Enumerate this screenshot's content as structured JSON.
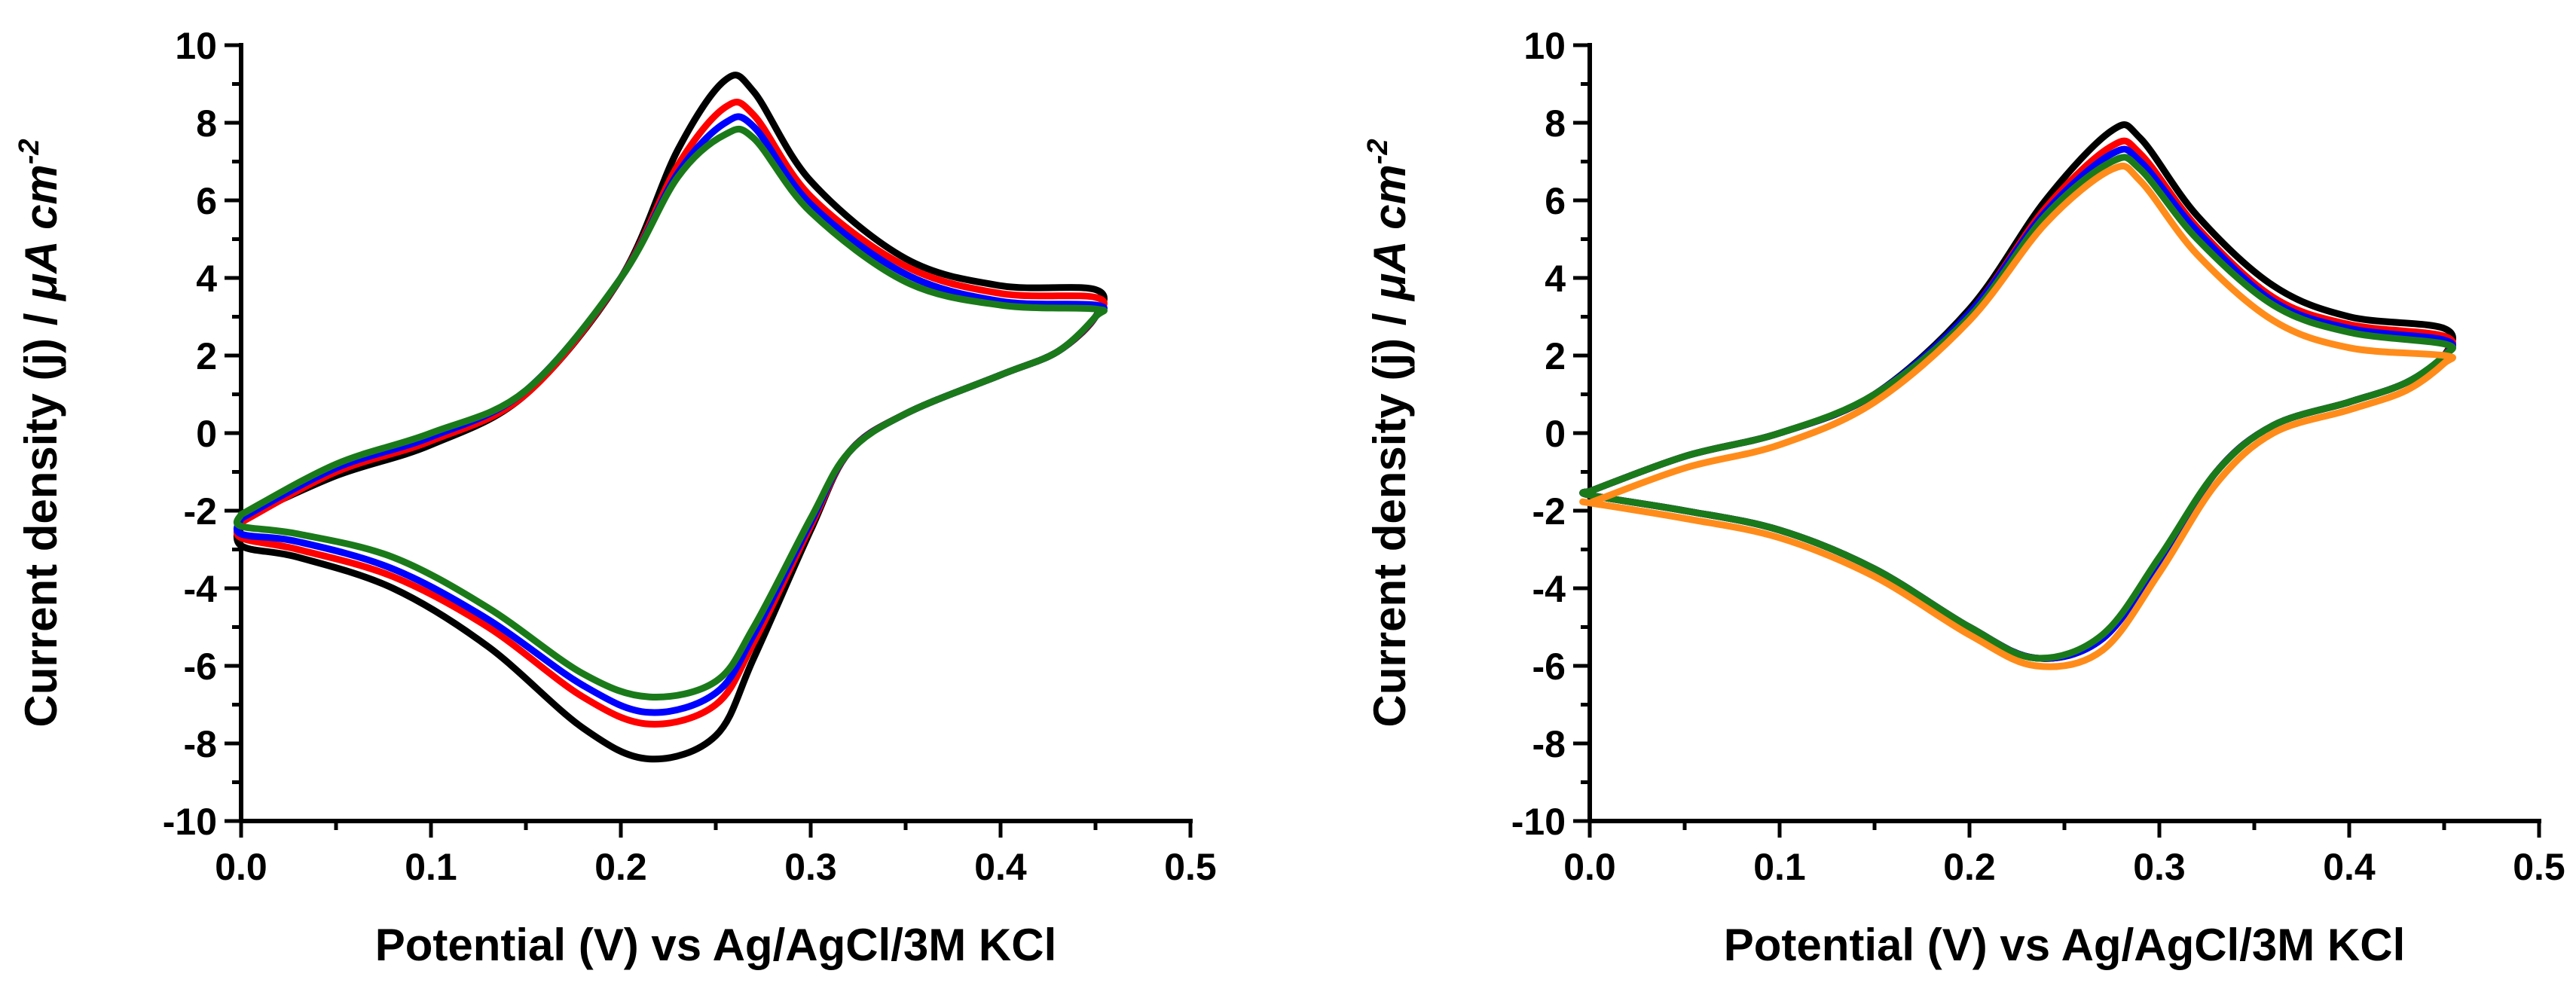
{
  "chart_data": [
    {
      "type": "line",
      "title": "",
      "xlabel": "Potential (V) vs Ag/AgCl/3M KCl",
      "ylabel_prefix": "Current density (j) / ",
      "ylabel_unit_mu": "μ",
      "ylabel_unit_main": "A cm",
      "ylabel_unit_sup": "-2",
      "xlim": [
        0.0,
        0.5
      ],
      "ylim": [
        -10,
        10
      ],
      "xticks": [
        "0.0",
        "0.1",
        "0.2",
        "0.3",
        "0.4",
        "0.5"
      ],
      "yticks": [
        "-10",
        "-8",
        "-6",
        "-4",
        "-2",
        "0",
        "2",
        "4",
        "6",
        "8",
        "10"
      ],
      "series": [
        {
          "name": "black",
          "color": "#000000",
          "anodic": [
            [
              0.0,
              -2.2
            ],
            [
              0.05,
              -1.1
            ],
            [
              0.1,
              -0.3
            ],
            [
              0.15,
              1.0
            ],
            [
              0.2,
              4.0
            ],
            [
              0.23,
              7.3
            ],
            [
              0.255,
              9.1
            ],
            [
              0.27,
              8.8
            ],
            [
              0.3,
              6.5
            ],
            [
              0.35,
              4.5
            ],
            [
              0.4,
              3.8
            ],
            [
              0.45,
              3.7
            ]
          ],
          "cathodic": [
            [
              0.45,
              3.0
            ],
            [
              0.43,
              2.1
            ],
            [
              0.4,
              1.5
            ],
            [
              0.35,
              0.5
            ],
            [
              0.32,
              -0.5
            ],
            [
              0.3,
              -2.5
            ],
            [
              0.27,
              -5.8
            ],
            [
              0.25,
              -7.8
            ],
            [
              0.215,
              -8.4
            ],
            [
              0.18,
              -7.6
            ],
            [
              0.13,
              -5.5
            ],
            [
              0.08,
              -4.0
            ],
            [
              0.03,
              -3.2
            ],
            [
              0.0,
              -2.9
            ]
          ]
        },
        {
          "name": "red",
          "color": "#ff0000",
          "anodic": [
            [
              0.0,
              -2.3
            ],
            [
              0.05,
              -1.0
            ],
            [
              0.1,
              -0.2
            ],
            [
              0.15,
              1.0
            ],
            [
              0.2,
              4.0
            ],
            [
              0.23,
              6.9
            ],
            [
              0.255,
              8.4
            ],
            [
              0.27,
              8.2
            ],
            [
              0.3,
              6.1
            ],
            [
              0.35,
              4.3
            ],
            [
              0.4,
              3.6
            ],
            [
              0.45,
              3.5
            ]
          ],
          "cathodic": [
            [
              0.45,
              3.0
            ],
            [
              0.43,
              2.1
            ],
            [
              0.4,
              1.5
            ],
            [
              0.35,
              0.5
            ],
            [
              0.32,
              -0.5
            ],
            [
              0.3,
              -2.4
            ],
            [
              0.27,
              -5.4
            ],
            [
              0.25,
              -7.0
            ],
            [
              0.215,
              -7.5
            ],
            [
              0.18,
              -6.8
            ],
            [
              0.13,
              -5.0
            ],
            [
              0.08,
              -3.7
            ],
            [
              0.03,
              -3.0
            ],
            [
              0.0,
              -2.7
            ]
          ]
        },
        {
          "name": "blue",
          "color": "#0000ff",
          "anodic": [
            [
              0.0,
              -2.2
            ],
            [
              0.05,
              -0.9
            ],
            [
              0.1,
              -0.1
            ],
            [
              0.15,
              1.1
            ],
            [
              0.2,
              4.0
            ],
            [
              0.23,
              6.7
            ],
            [
              0.255,
              8.0
            ],
            [
              0.27,
              7.9
            ],
            [
              0.3,
              5.9
            ],
            [
              0.35,
              4.1
            ],
            [
              0.4,
              3.4
            ],
            [
              0.45,
              3.3
            ]
          ],
          "cathodic": [
            [
              0.45,
              3.0
            ],
            [
              0.43,
              2.1
            ],
            [
              0.4,
              1.5
            ],
            [
              0.35,
              0.5
            ],
            [
              0.32,
              -0.5
            ],
            [
              0.3,
              -2.3
            ],
            [
              0.27,
              -5.2
            ],
            [
              0.25,
              -6.7
            ],
            [
              0.215,
              -7.2
            ],
            [
              0.18,
              -6.5
            ],
            [
              0.13,
              -4.8
            ],
            [
              0.08,
              -3.5
            ],
            [
              0.03,
              -2.8
            ],
            [
              0.0,
              -2.6
            ]
          ]
        },
        {
          "name": "green",
          "color": "#1a7a1a",
          "anodic": [
            [
              0.0,
              -2.1
            ],
            [
              0.05,
              -0.8
            ],
            [
              0.1,
              0.0
            ],
            [
              0.15,
              1.1
            ],
            [
              0.2,
              4.0
            ],
            [
              0.23,
              6.6
            ],
            [
              0.255,
              7.7
            ],
            [
              0.27,
              7.6
            ],
            [
              0.3,
              5.7
            ],
            [
              0.35,
              3.9
            ],
            [
              0.4,
              3.3
            ],
            [
              0.45,
              3.2
            ]
          ],
          "cathodic": [
            [
              0.45,
              3.0
            ],
            [
              0.43,
              2.1
            ],
            [
              0.4,
              1.5
            ],
            [
              0.35,
              0.5
            ],
            [
              0.32,
              -0.5
            ],
            [
              0.3,
              -2.2
            ],
            [
              0.27,
              -5.0
            ],
            [
              0.25,
              -6.4
            ],
            [
              0.215,
              -6.8
            ],
            [
              0.18,
              -6.2
            ],
            [
              0.13,
              -4.5
            ],
            [
              0.08,
              -3.2
            ],
            [
              0.03,
              -2.6
            ],
            [
              0.0,
              -2.4
            ]
          ]
        }
      ]
    },
    {
      "type": "line",
      "title": "",
      "xlabel": "Potential (V) vs Ag/AgCl/3M KCl",
      "ylabel_prefix": "Current density (j) / ",
      "ylabel_unit_mu": "μ",
      "ylabel_unit_main": "A cm",
      "ylabel_unit_sup": "-2",
      "xlim": [
        0.0,
        0.5
      ],
      "ylim": [
        -10,
        10
      ],
      "xticks": [
        "0.0",
        "0.1",
        "0.2",
        "0.3",
        "0.4",
        "0.5"
      ],
      "yticks": [
        "-10",
        "-8",
        "-6",
        "-4",
        "-2",
        "0",
        "2",
        "4",
        "6",
        "8",
        "10"
      ],
      "series": [
        {
          "name": "black",
          "color": "#000000",
          "anodic": [
            [
              0.0,
              -1.5
            ],
            [
              0.05,
              -0.6
            ],
            [
              0.1,
              0.0
            ],
            [
              0.15,
              1.0
            ],
            [
              0.2,
              3.2
            ],
            [
              0.24,
              6.0
            ],
            [
              0.275,
              7.8
            ],
            [
              0.29,
              7.6
            ],
            [
              0.32,
              5.6
            ],
            [
              0.36,
              3.8
            ],
            [
              0.4,
              3.0
            ],
            [
              0.45,
              2.7
            ]
          ],
          "cathodic": [
            [
              0.45,
              2.0
            ],
            [
              0.43,
              1.3
            ],
            [
              0.4,
              0.8
            ],
            [
              0.36,
              0.2
            ],
            [
              0.33,
              -1.0
            ],
            [
              0.3,
              -3.3
            ],
            [
              0.27,
              -5.3
            ],
            [
              0.235,
              -5.8
            ],
            [
              0.2,
              -5.0
            ],
            [
              0.15,
              -3.5
            ],
            [
              0.1,
              -2.5
            ],
            [
              0.05,
              -2.0
            ],
            [
              0.0,
              -1.6
            ]
          ]
        },
        {
          "name": "red",
          "color": "#ff0000",
          "anodic": [
            [
              0.0,
              -1.5
            ],
            [
              0.05,
              -0.6
            ],
            [
              0.1,
              0.0
            ],
            [
              0.15,
              1.0
            ],
            [
              0.2,
              3.1
            ],
            [
              0.24,
              5.8
            ],
            [
              0.275,
              7.4
            ],
            [
              0.29,
              7.2
            ],
            [
              0.32,
              5.3
            ],
            [
              0.36,
              3.5
            ],
            [
              0.4,
              2.8
            ],
            [
              0.45,
              2.5
            ]
          ],
          "cathodic": [
            [
              0.45,
              2.0
            ],
            [
              0.43,
              1.3
            ],
            [
              0.4,
              0.8
            ],
            [
              0.36,
              0.2
            ],
            [
              0.33,
              -1.0
            ],
            [
              0.3,
              -3.3
            ],
            [
              0.27,
              -5.3
            ],
            [
              0.235,
              -5.8
            ],
            [
              0.2,
              -5.0
            ],
            [
              0.15,
              -3.5
            ],
            [
              0.1,
              -2.5
            ],
            [
              0.05,
              -2.0
            ],
            [
              0.0,
              -1.6
            ]
          ]
        },
        {
          "name": "blue",
          "color": "#0000ff",
          "anodic": [
            [
              0.0,
              -1.5
            ],
            [
              0.05,
              -0.6
            ],
            [
              0.1,
              0.0
            ],
            [
              0.15,
              1.0
            ],
            [
              0.2,
              3.1
            ],
            [
              0.24,
              5.7
            ],
            [
              0.275,
              7.2
            ],
            [
              0.29,
              7.0
            ],
            [
              0.32,
              5.2
            ],
            [
              0.36,
              3.4
            ],
            [
              0.4,
              2.7
            ],
            [
              0.45,
              2.4
            ]
          ],
          "cathodic": [
            [
              0.45,
              2.0
            ],
            [
              0.43,
              1.3
            ],
            [
              0.4,
              0.8
            ],
            [
              0.36,
              0.2
            ],
            [
              0.33,
              -1.0
            ],
            [
              0.3,
              -3.3
            ],
            [
              0.27,
              -5.3
            ],
            [
              0.235,
              -5.8
            ],
            [
              0.2,
              -5.0
            ],
            [
              0.15,
              -3.5
            ],
            [
              0.1,
              -2.5
            ],
            [
              0.05,
              -2.0
            ],
            [
              0.0,
              -1.6
            ]
          ]
        },
        {
          "name": "green",
          "color": "#1a7a1a",
          "anodic": [
            [
              0.0,
              -1.5
            ],
            [
              0.05,
              -0.6
            ],
            [
              0.1,
              0.0
            ],
            [
              0.15,
              1.0
            ],
            [
              0.2,
              3.0
            ],
            [
              0.24,
              5.6
            ],
            [
              0.275,
              7.0
            ],
            [
              0.29,
              6.8
            ],
            [
              0.32,
              5.0
            ],
            [
              0.36,
              3.3
            ],
            [
              0.4,
              2.6
            ],
            [
              0.45,
              2.3
            ]
          ],
          "cathodic": [
            [
              0.45,
              2.0
            ],
            [
              0.43,
              1.3
            ],
            [
              0.4,
              0.8
            ],
            [
              0.36,
              0.2
            ],
            [
              0.33,
              -1.0
            ],
            [
              0.3,
              -3.2
            ],
            [
              0.27,
              -5.2
            ],
            [
              0.235,
              -5.8
            ],
            [
              0.2,
              -5.0
            ],
            [
              0.15,
              -3.5
            ],
            [
              0.1,
              -2.5
            ],
            [
              0.05,
              -2.0
            ],
            [
              0.0,
              -1.6
            ]
          ]
        },
        {
          "name": "orange",
          "color": "#ff8c1a",
          "anodic": [
            [
              0.0,
              -1.8
            ],
            [
              0.05,
              -0.9
            ],
            [
              0.1,
              -0.3
            ],
            [
              0.15,
              0.8
            ],
            [
              0.2,
              2.9
            ],
            [
              0.24,
              5.4
            ],
            [
              0.275,
              6.8
            ],
            [
              0.29,
              6.5
            ],
            [
              0.32,
              4.6
            ],
            [
              0.36,
              2.9
            ],
            [
              0.4,
              2.2
            ],
            [
              0.45,
              2.0
            ]
          ],
          "cathodic": [
            [
              0.45,
              1.8
            ],
            [
              0.43,
              1.1
            ],
            [
              0.4,
              0.6
            ],
            [
              0.36,
              0.0
            ],
            [
              0.33,
              -1.3
            ],
            [
              0.3,
              -3.6
            ],
            [
              0.27,
              -5.6
            ],
            [
              0.235,
              -6.0
            ],
            [
              0.2,
              -5.2
            ],
            [
              0.15,
              -3.7
            ],
            [
              0.1,
              -2.7
            ],
            [
              0.05,
              -2.2
            ],
            [
              0.0,
              -1.8
            ]
          ]
        }
      ]
    }
  ]
}
